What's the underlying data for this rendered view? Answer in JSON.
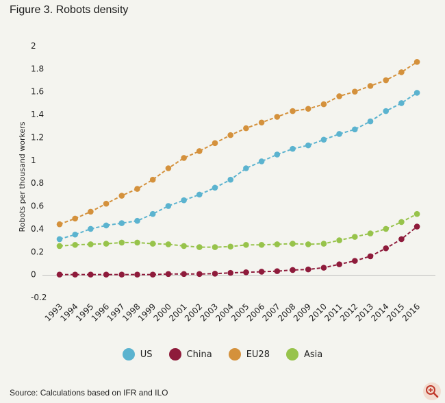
{
  "title": "Figure 3. Robots density",
  "source": "Source: Calculations based on IFR and ILO",
  "zoom_icon": "zoom-in-icon",
  "chart_data": {
    "type": "line",
    "title": "Figure 3. Robots density",
    "xlabel": "",
    "ylabel": "Robots per thousand workers",
    "ylim": [
      -0.2,
      2
    ],
    "yticks": [
      "2",
      "1.8",
      "1.6",
      "1.4",
      "1.2",
      "1",
      "0.8",
      "0.6",
      "0.4",
      "0.2",
      "0",
      "-0.2"
    ],
    "ytick_values": [
      2,
      1.8,
      1.6,
      1.4,
      1.2,
      1,
      0.8,
      0.6,
      0.4,
      0.2,
      0,
      -0.2
    ],
    "categories": [
      "1993",
      "1994",
      "1995",
      "1996",
      "1997",
      "1998",
      "1999",
      "2000",
      "2001",
      "2002",
      "2003",
      "2004",
      "2005",
      "2006",
      "2007",
      "2008",
      "2009",
      "2010",
      "2011",
      "2012",
      "2013",
      "2014",
      "2015",
      "2016"
    ],
    "legend_position": "bottom",
    "series": [
      {
        "name": "US",
        "color": "#5bb3cf",
        "values": [
          0.31,
          0.35,
          0.4,
          0.43,
          0.45,
          0.47,
          0.53,
          0.6,
          0.65,
          0.7,
          0.76,
          0.83,
          0.93,
          0.99,
          1.05,
          1.1,
          1.13,
          1.18,
          1.23,
          1.27,
          1.34,
          1.43,
          1.5,
          1.59
        ]
      },
      {
        "name": "China",
        "color": "#8e1b3b",
        "values": [
          0.0,
          0.0,
          0.0,
          0.0,
          0.0,
          0.0,
          0.0,
          0.005,
          0.005,
          0.005,
          0.008,
          0.015,
          0.02,
          0.025,
          0.03,
          0.04,
          0.045,
          0.06,
          0.09,
          0.12,
          0.16,
          0.23,
          0.31,
          0.42
        ]
      },
      {
        "name": "EU28",
        "color": "#d4913c",
        "values": [
          0.44,
          0.49,
          0.55,
          0.62,
          0.69,
          0.75,
          0.83,
          0.93,
          1.02,
          1.08,
          1.15,
          1.22,
          1.28,
          1.33,
          1.38,
          1.43,
          1.45,
          1.49,
          1.56,
          1.6,
          1.65,
          1.7,
          1.77,
          1.86
        ]
      },
      {
        "name": "Asia",
        "color": "#97c34b",
        "values": [
          0.25,
          0.26,
          0.265,
          0.27,
          0.28,
          0.28,
          0.27,
          0.265,
          0.25,
          0.24,
          0.24,
          0.245,
          0.26,
          0.26,
          0.265,
          0.27,
          0.265,
          0.27,
          0.3,
          0.33,
          0.36,
          0.4,
          0.46,
          0.53
        ]
      }
    ]
  }
}
